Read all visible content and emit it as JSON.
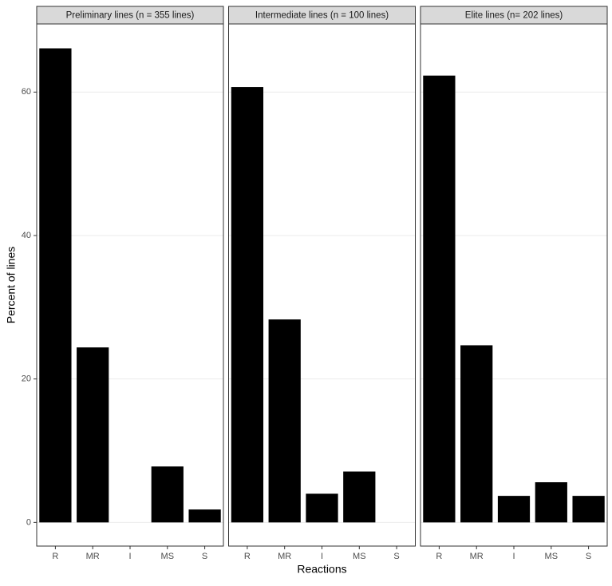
{
  "chart_data": [
    {
      "type": "bar",
      "title": "Preliminary lines (n = 355 lines)",
      "ylabel": "Percent of lines",
      "categories": [
        "R",
        "MR",
        "I",
        "MS",
        "S"
      ],
      "values": [
        66.1,
        24.4,
        0,
        7.8,
        1.8
      ],
      "color": "#000000",
      "ylim": [
        -3.3,
        69.5
      ],
      "yticks": [
        0,
        20,
        40,
        60
      ],
      "grid": true
    },
    {
      "type": "bar",
      "title": "Intermediate lines (n = 100 lines)",
      "xlabel": "Reactions",
      "categories": [
        "R",
        "MR",
        "I",
        "MS",
        "S"
      ],
      "values": [
        60.7,
        28.3,
        4.0,
        7.1,
        0
      ],
      "color": "#000000",
      "ylim": [
        -3.3,
        69.5
      ],
      "yticks": [
        0,
        20,
        40,
        60
      ],
      "grid": true
    },
    {
      "type": "bar",
      "title": "Elite lines (n= 202 lines)",
      "categories": [
        "R",
        "MR",
        "I",
        "MS",
        "S"
      ],
      "values": [
        62.3,
        24.7,
        3.7,
        5.6,
        3.7
      ],
      "color": "#000000",
      "ylim": [
        -3.3,
        69.5
      ],
      "yticks": [
        0,
        20,
        40,
        60
      ],
      "grid": true
    }
  ]
}
